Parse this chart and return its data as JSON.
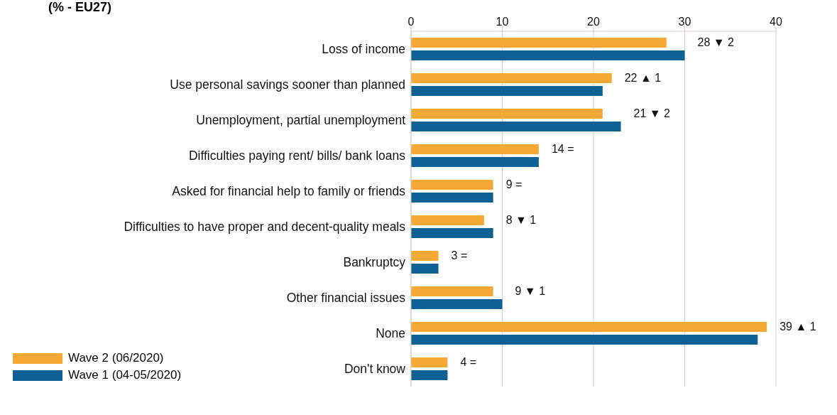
{
  "chart_data": {
    "type": "bar",
    "orientation": "horizontal",
    "title": "(% - EU27)",
    "categories": [
      "Loss of income",
      "Use personal savings sooner than planned",
      "Unemployment, partial unemployment",
      "Difficulties paying rent/ bills/ bank loans",
      "Asked for financial help to family or friends",
      "Difficulties to have proper and decent-quality meals",
      "Bankruptcy",
      "Other financial issues",
      "None",
      "Don't know"
    ],
    "series": [
      {
        "name": "Wave 2 (06/2020)",
        "color": "#f5a833",
        "values": [
          28,
          22,
          21,
          14,
          9,
          8,
          3,
          9,
          39,
          4
        ],
        "value_labels": [
          "28 ▼ 2",
          "22 ▲ 1",
          "21 ▼ 2",
          "14 =",
          "9 =",
          "8 ▼ 1",
          "3 =",
          "9 ▼ 1",
          "39 ▲ 1",
          "4 ="
        ]
      },
      {
        "name": "Wave 1 (04-05/2020)",
        "color": "#0e6194",
        "values": [
          30,
          21,
          23,
          14,
          9,
          9,
          3,
          10,
          38,
          4
        ]
      }
    ],
    "xlim": [
      0,
      40
    ],
    "xticks": [
      0,
      10,
      20,
      30,
      40
    ],
    "grid": "x",
    "legend": "bottom left"
  }
}
